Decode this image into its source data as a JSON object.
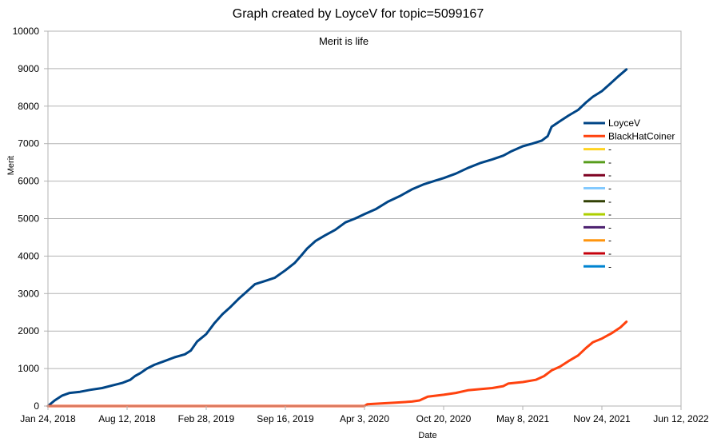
{
  "chart_data": {
    "type": "line",
    "title": "Graph created by LoyceV for topic=5099167",
    "subtitle": "Merit is life",
    "xlabel": "Date",
    "ylabel": "Merit",
    "x_ticks": [
      "Jan 24, 2018",
      "Aug 12, 2018",
      "Feb 28, 2019",
      "Sep 16, 2019",
      "Apr 3, 2020",
      "Oct 20, 2020",
      "May 8, 2021",
      "Nov 24, 2021",
      "Jun 12, 2022"
    ],
    "xlim": [
      "Jan 24, 2018",
      "Jun 12, 2022"
    ],
    "y_ticks": [
      0,
      1000,
      2000,
      3000,
      4000,
      5000,
      6000,
      7000,
      8000,
      9000,
      10000
    ],
    "ylim": [
      0,
      10000
    ],
    "grid": "horizontal",
    "legend_position": "right",
    "series": [
      {
        "name": "LoyceV",
        "color": "#004586",
        "points": [
          [
            "Jan 24, 2018",
            0
          ],
          [
            "Feb 10, 2018",
            150
          ],
          [
            "Mar 1, 2018",
            280
          ],
          [
            "Mar 20, 2018",
            350
          ],
          [
            "Apr 15, 2018",
            380
          ],
          [
            "May 10, 2018",
            430
          ],
          [
            "Jun 10, 2018",
            480
          ],
          [
            "Jul 10, 2018",
            560
          ],
          [
            "Aug 1, 2018",
            620
          ],
          [
            "Aug 20, 2018",
            700
          ],
          [
            "Sep 1, 2018",
            800
          ],
          [
            "Sep 15, 2018",
            880
          ],
          [
            "Oct 1, 2018",
            1000
          ],
          [
            "Oct 20, 2018",
            1100
          ],
          [
            "Nov 15, 2018",
            1200
          ],
          [
            "Dec 10, 2018",
            1300
          ],
          [
            "Jan 5, 2019",
            1380
          ],
          [
            "Jan 20, 2019",
            1480
          ],
          [
            "Feb 5, 2019",
            1720
          ],
          [
            "Feb 28, 2019",
            1920
          ],
          [
            "Mar 20, 2019",
            2200
          ],
          [
            "Apr 10, 2019",
            2450
          ],
          [
            "May 1, 2019",
            2650
          ],
          [
            "May 20, 2019",
            2850
          ],
          [
            "Jun 10, 2019",
            3050
          ],
          [
            "Jul 1, 2019",
            3250
          ],
          [
            "Jul 25, 2019",
            3330
          ],
          [
            "Aug 20, 2019",
            3420
          ],
          [
            "Sep 16, 2019",
            3620
          ],
          [
            "Oct 10, 2019",
            3820
          ],
          [
            "Oct 25, 2019",
            4000
          ],
          [
            "Nov 10, 2019",
            4200
          ],
          [
            "Dec 1, 2019",
            4400
          ],
          [
            "Dec 25, 2019",
            4550
          ],
          [
            "Jan 20, 2020",
            4700
          ],
          [
            "Feb 15, 2020",
            4900
          ],
          [
            "Mar 10, 2020",
            5000
          ],
          [
            "Apr 3, 2020",
            5120
          ],
          [
            "May 1, 2020",
            5250
          ],
          [
            "Jun 1, 2020",
            5450
          ],
          [
            "Jul 1, 2020",
            5600
          ],
          [
            "Aug 1, 2020",
            5780
          ],
          [
            "Sep 1, 2020",
            5920
          ],
          [
            "Oct 1, 2020",
            6020
          ],
          [
            "Oct 20, 2020",
            6080
          ],
          [
            "Nov 20, 2020",
            6200
          ],
          [
            "Dec 20, 2020",
            6350
          ],
          [
            "Jan 20, 2021",
            6480
          ],
          [
            "Feb 20, 2021",
            6580
          ],
          [
            "Mar 20, 2021",
            6680
          ],
          [
            "Apr 10, 2021",
            6800
          ],
          [
            "May 8, 2021",
            6930
          ],
          [
            "Jun 1, 2021",
            7000
          ],
          [
            "Jun 25, 2021",
            7080
          ],
          [
            "Jul 10, 2021",
            7200
          ],
          [
            "Jul 20, 2021",
            7450
          ],
          [
            "Aug 10, 2021",
            7600
          ],
          [
            "Sep 1, 2021",
            7750
          ],
          [
            "Sep 25, 2021",
            7900
          ],
          [
            "Oct 15, 2021",
            8100
          ],
          [
            "Nov 1, 2021",
            8250
          ],
          [
            "Nov 24, 2021",
            8400
          ],
          [
            "Dec 15, 2021",
            8600
          ],
          [
            "Jan 5, 2022",
            8800
          ],
          [
            "Jan 25, 2022",
            8980
          ]
        ]
      },
      {
        "name": "BlackHatCoiner",
        "color": "#ff420e",
        "points": [
          [
            "Jan 24, 2018",
            0
          ],
          [
            "Apr 3, 2020",
            0
          ],
          [
            "Apr 10, 2020",
            50
          ],
          [
            "May 15, 2020",
            70
          ],
          [
            "Jun 20, 2020",
            90
          ],
          [
            "Aug 1, 2020",
            120
          ],
          [
            "Aug 20, 2020",
            150
          ],
          [
            "Sep 10, 2020",
            250
          ],
          [
            "Oct 20, 2020",
            300
          ],
          [
            "Nov 20, 2020",
            350
          ],
          [
            "Dec 20, 2020",
            420
          ],
          [
            "Jan 20, 2021",
            450
          ],
          [
            "Feb 20, 2021",
            480
          ],
          [
            "Mar 20, 2021",
            530
          ],
          [
            "Apr 1, 2021",
            600
          ],
          [
            "May 8, 2021",
            640
          ],
          [
            "Jun 10, 2021",
            700
          ],
          [
            "Jul 1, 2021",
            800
          ],
          [
            "Jul 20, 2021",
            950
          ],
          [
            "Aug 10, 2021",
            1050
          ],
          [
            "Sep 1, 2021",
            1200
          ],
          [
            "Sep 25, 2021",
            1350
          ],
          [
            "Oct 15, 2021",
            1550
          ],
          [
            "Nov 1, 2021",
            1700
          ],
          [
            "Nov 24, 2021",
            1800
          ],
          [
            "Dec 20, 2021",
            1950
          ],
          [
            "Jan 10, 2022",
            2100
          ],
          [
            "Jan 25, 2022",
            2250
          ]
        ]
      }
    ],
    "legend_entries": [
      {
        "label": "LoyceV",
        "color": "#004586"
      },
      {
        "label": "BlackHatCoiner",
        "color": "#ff420e"
      },
      {
        "label": "-",
        "color": "#ffd320"
      },
      {
        "label": "-",
        "color": "#579d1c"
      },
      {
        "label": "-",
        "color": "#7e0021"
      },
      {
        "label": "-",
        "color": "#83caff"
      },
      {
        "label": "-",
        "color": "#314004"
      },
      {
        "label": "-",
        "color": "#aecf00"
      },
      {
        "label": "-",
        "color": "#4b1f6f"
      },
      {
        "label": "-",
        "color": "#ff950e"
      },
      {
        "label": "-",
        "color": "#c5000b"
      },
      {
        "label": "-",
        "color": "#0084d1"
      }
    ]
  }
}
